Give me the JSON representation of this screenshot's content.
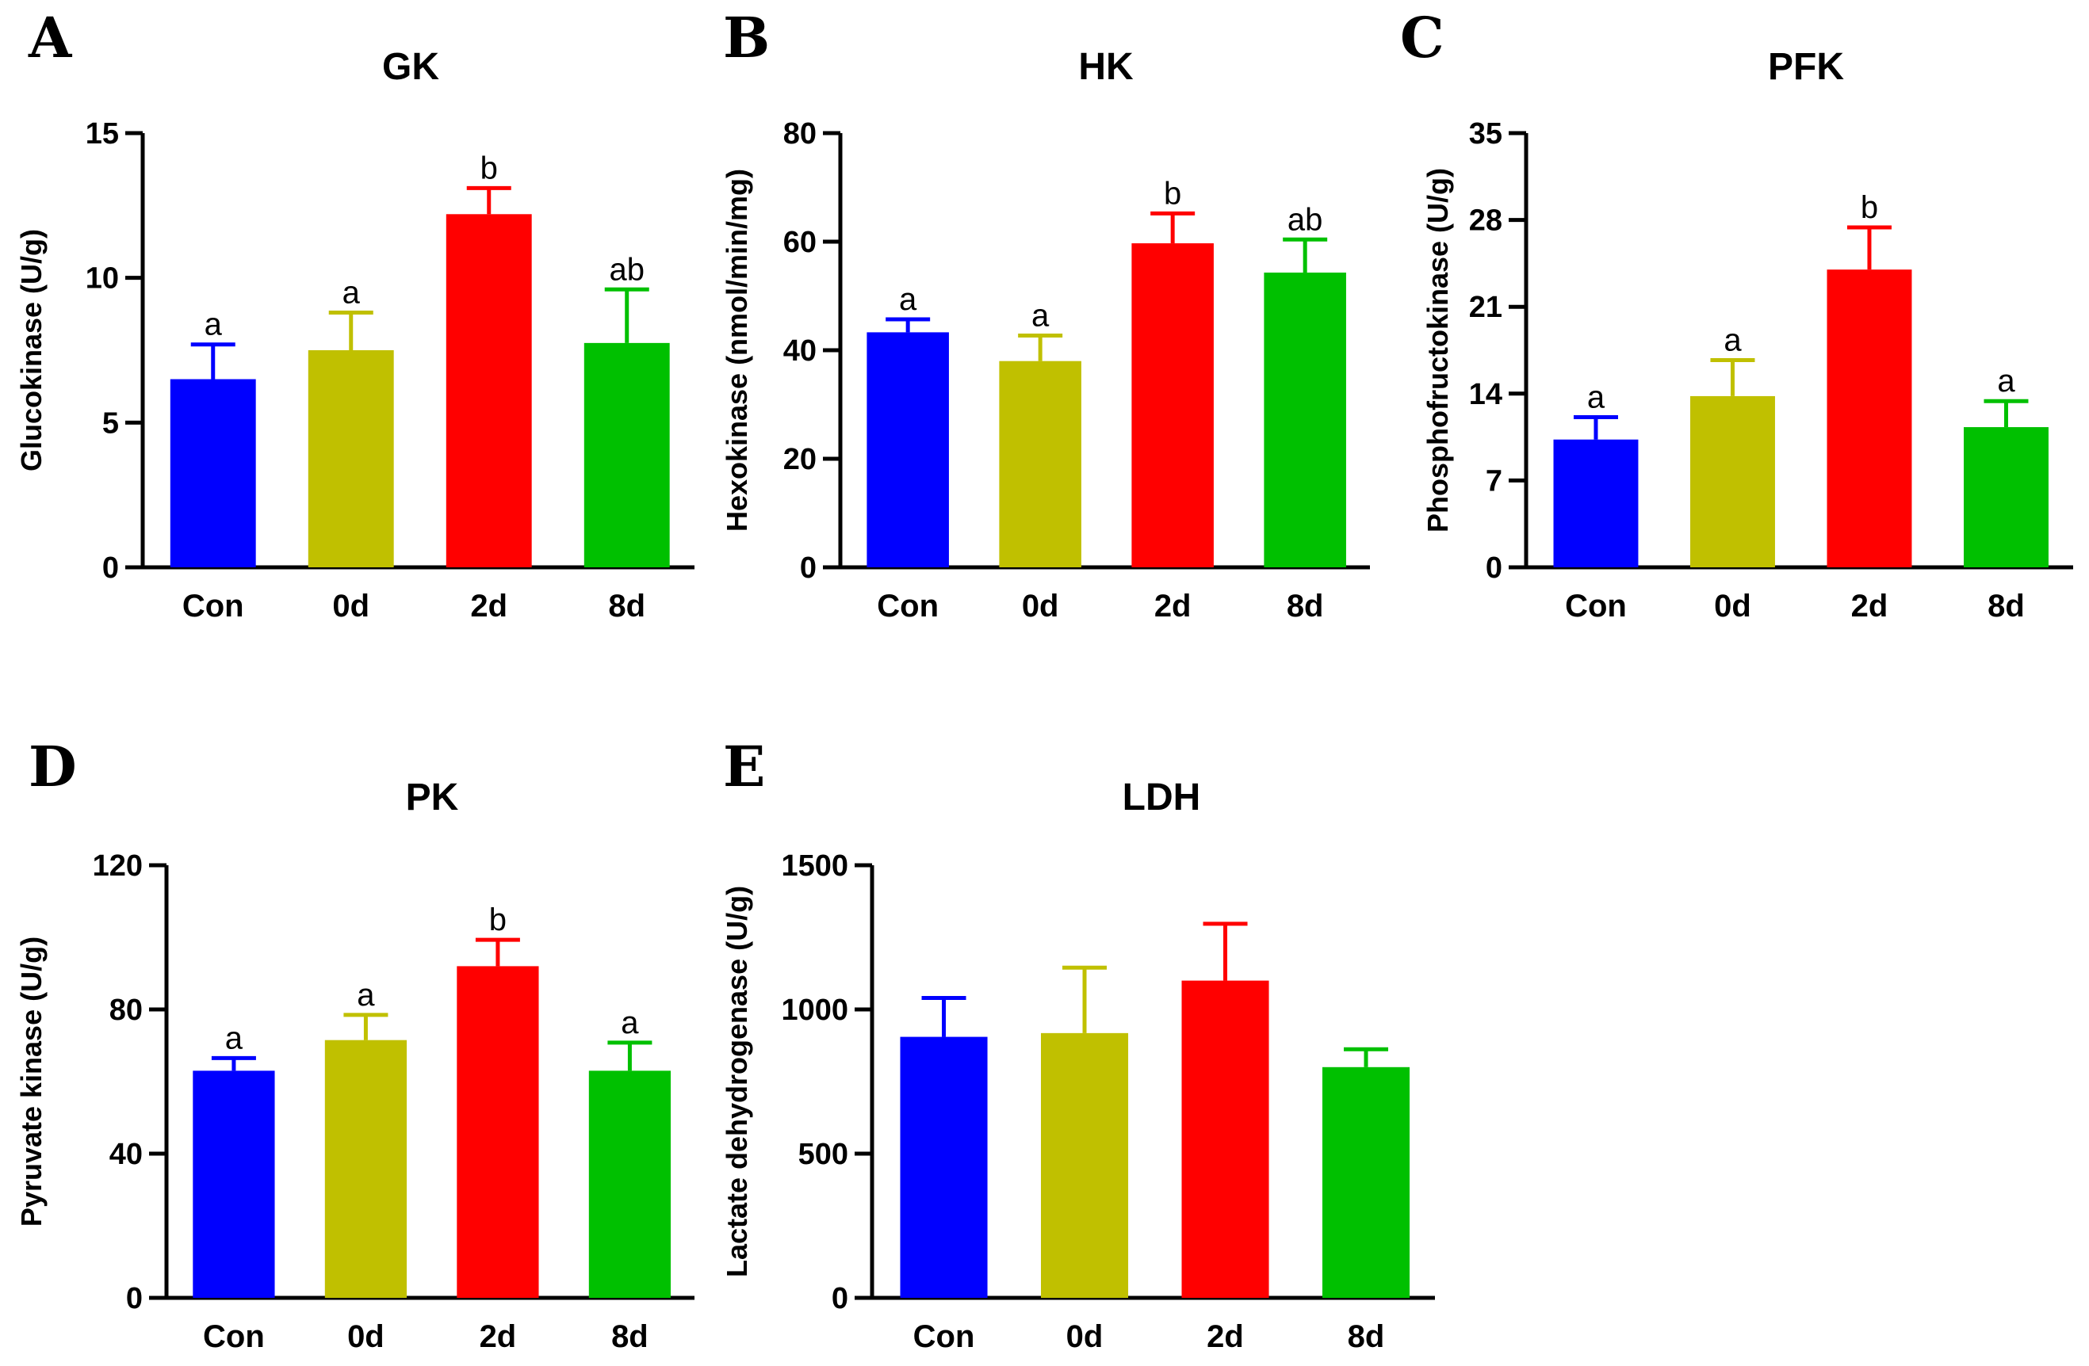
{
  "chart_data": [
    {
      "type": "bar",
      "panel": "A",
      "title": "GK",
      "ylabel": "Glucokinase (U/g)",
      "categories": [
        "Con",
        "0d",
        "2d",
        "8d"
      ],
      "values": [
        6.5,
        7.5,
        12.2,
        7.75
      ],
      "errors": [
        1.2,
        1.3,
        0.9,
        1.85
      ],
      "significance": [
        "a",
        "a",
        "b",
        "ab"
      ],
      "ylim": [
        0,
        15
      ],
      "yticks": [
        0,
        5,
        10,
        15
      ],
      "colors": [
        "#0000ff",
        "#c0c000",
        "#ff0000",
        "#00c000"
      ]
    },
    {
      "type": "bar",
      "panel": "B",
      "title": "HK",
      "ylabel": "Hexokinase (nmol/min/mg)",
      "categories": [
        "Con",
        "0d",
        "2d",
        "8d"
      ],
      "values": [
        43.3,
        38,
        59.7,
        54.3
      ],
      "errors": [
        2.4,
        4.7,
        5.5,
        6.1
      ],
      "significance": [
        "a",
        "a",
        "b",
        "ab"
      ],
      "ylim": [
        0,
        80
      ],
      "yticks": [
        0,
        20,
        40,
        60,
        80
      ],
      "colors": [
        "#0000ff",
        "#c0c000",
        "#ff0000",
        "#00c000"
      ]
    },
    {
      "type": "bar",
      "panel": "C",
      "title": "PFK",
      "ylabel": "Phosphofructokinase (U/g)",
      "categories": [
        "Con",
        "0d",
        "2d",
        "8d"
      ],
      "values": [
        10.3,
        13.8,
        24,
        11.3
      ],
      "errors": [
        1.8,
        2.9,
        3.4,
        2.1
      ],
      "significance": [
        "a",
        "a",
        "b",
        "a"
      ],
      "ylim": [
        0,
        35
      ],
      "yticks": [
        0,
        7,
        14,
        21,
        28,
        35
      ],
      "colors": [
        "#0000ff",
        "#c0c000",
        "#ff0000",
        "#00c000"
      ]
    },
    {
      "type": "bar",
      "panel": "D",
      "title": "PK",
      "ylabel": "Pyruvate kinase (U/g)",
      "categories": [
        "Con",
        "0d",
        "2d",
        "8d"
      ],
      "values": [
        63,
        71.5,
        92,
        63
      ],
      "errors": [
        3.5,
        7,
        7.3,
        7.8
      ],
      "significance": [
        "a",
        "a",
        "b",
        "a"
      ],
      "ylim": [
        0,
        120
      ],
      "yticks": [
        0,
        40,
        80,
        120
      ],
      "colors": [
        "#0000ff",
        "#c0c000",
        "#ff0000",
        "#00c000"
      ]
    },
    {
      "type": "bar",
      "panel": "E",
      "title": "LDH",
      "ylabel": "Lactate dehydrogenase (U/g)",
      "categories": [
        "Con",
        "0d",
        "2d",
        "8d"
      ],
      "values": [
        905,
        918,
        1100,
        800
      ],
      "errors": [
        135,
        227,
        197,
        62
      ],
      "significance": [
        "",
        "",
        "",
        ""
      ],
      "ylim": [
        0,
        1500
      ],
      "yticks": [
        0,
        500,
        1000,
        1500
      ],
      "colors": [
        "#0000ff",
        "#c0c000",
        "#ff0000",
        "#00c000"
      ]
    }
  ]
}
